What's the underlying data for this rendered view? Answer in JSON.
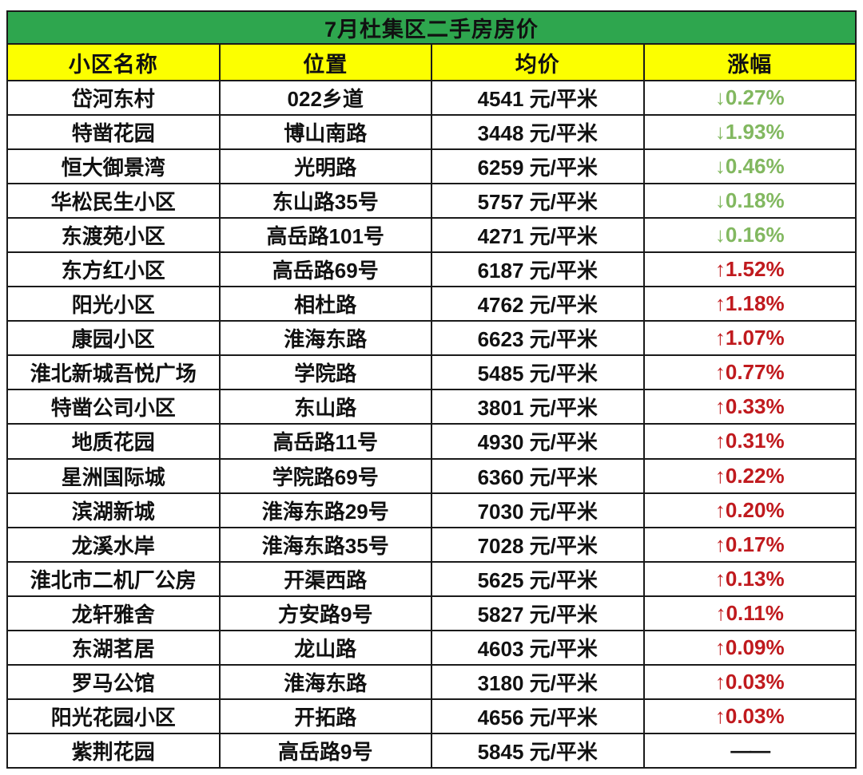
{
  "title": "7月杜集区二手房房价",
  "columns": [
    "小区名称",
    "位置",
    "均价",
    "涨幅"
  ],
  "colors": {
    "title_bg": "#2ea64e",
    "header_bg": "#fcff00",
    "up_red": "#c01a1e",
    "down_green": "#82b860",
    "border": "#1a1a1a",
    "text": "#111111"
  },
  "rows": [
    {
      "name": "岱河东村",
      "location": "022乡道",
      "price": "4541 元/平米",
      "change": "↓0.27%",
      "direction": "down"
    },
    {
      "name": "特凿花园",
      "location": "博山南路",
      "price": "3448 元/平米",
      "change": "↓1.93%",
      "direction": "down"
    },
    {
      "name": "恒大御景湾",
      "location": "光明路",
      "price": "6259 元/平米",
      "change": "↓0.46%",
      "direction": "down"
    },
    {
      "name": "华松民生小区",
      "location": "东山路35号",
      "price": "5757 元/平米",
      "change": "↓0.18%",
      "direction": "down"
    },
    {
      "name": "东渡苑小区",
      "location": "高岳路101号",
      "price": "4271 元/平米",
      "change": "↓0.16%",
      "direction": "down"
    },
    {
      "name": "东方红小区",
      "location": "高岳路69号",
      "price": "6187 元/平米",
      "change": "↑1.52%",
      "direction": "up"
    },
    {
      "name": "阳光小区",
      "location": "相杜路",
      "price": "4762 元/平米",
      "change": "↑1.18%",
      "direction": "up"
    },
    {
      "name": "康园小区",
      "location": "淮海东路",
      "price": "6623 元/平米",
      "change": "↑1.07%",
      "direction": "up"
    },
    {
      "name": "淮北新城吾悦广场",
      "location": "学院路",
      "price": "5485 元/平米",
      "change": "↑0.77%",
      "direction": "up"
    },
    {
      "name": "特凿公司小区",
      "location": "东山路",
      "price": "3801 元/平米",
      "change": "↑0.33%",
      "direction": "up"
    },
    {
      "name": "地质花园",
      "location": "高岳路11号",
      "price": "4930 元/平米",
      "change": "↑0.31%",
      "direction": "up"
    },
    {
      "name": "星洲国际城",
      "location": "学院路69号",
      "price": "6360 元/平米",
      "change": "↑0.22%",
      "direction": "up"
    },
    {
      "name": "滨湖新城",
      "location": "淮海东路29号",
      "price": "7030 元/平米",
      "change": "↑0.20%",
      "direction": "up"
    },
    {
      "name": "龙溪水岸",
      "location": "淮海东路35号",
      "price": "7028 元/平米",
      "change": "↑0.17%",
      "direction": "up"
    },
    {
      "name": "淮北市二机厂公房",
      "location": "开渠西路",
      "price": "5625 元/平米",
      "change": "↑0.13%",
      "direction": "up"
    },
    {
      "name": "龙轩雅舍",
      "location": "方安路9号",
      "price": "5827 元/平米",
      "change": "↑0.11%",
      "direction": "up"
    },
    {
      "name": "东湖茗居",
      "location": "龙山路",
      "price": "4603 元/平米",
      "change": "↑0.09%",
      "direction": "up"
    },
    {
      "name": "罗马公馆",
      "location": "淮海东路",
      "price": "3180 元/平米",
      "change": "↑0.03%",
      "direction": "up"
    },
    {
      "name": "阳光花园小区",
      "location": "开拓路",
      "price": "4656 元/平米",
      "change": "↑0.03%",
      "direction": "up"
    },
    {
      "name": "紫荆花园",
      "location": "高岳路9号",
      "price": "5845 元/平米",
      "change": "——",
      "direction": "none"
    }
  ],
  "chart_data": {
    "type": "table",
    "title": "7月杜集区二手房房价",
    "columns": [
      "小区名称",
      "位置",
      "均价",
      "涨幅"
    ],
    "rows": [
      [
        "岱河东村",
        "022乡道",
        "4541 元/平米",
        "↓0.27%"
      ],
      [
        "特凿花园",
        "博山南路",
        "3448 元/平米",
        "↓1.93%"
      ],
      [
        "恒大御景湾",
        "光明路",
        "6259 元/平米",
        "↓0.46%"
      ],
      [
        "华松民生小区",
        "东山路35号",
        "5757 元/平米",
        "↓0.18%"
      ],
      [
        "东渡苑小区",
        "高岳路101号",
        "4271 元/平米",
        "↓0.16%"
      ],
      [
        "东方红小区",
        "高岳路69号",
        "6187 元/平米",
        "↑1.52%"
      ],
      [
        "阳光小区",
        "相杜路",
        "4762 元/平米",
        "↑1.18%"
      ],
      [
        "康园小区",
        "淮海东路",
        "6623 元/平米",
        "↑1.07%"
      ],
      [
        "淮北新城吾悦广场",
        "学院路",
        "5485 元/平米",
        "↑0.77%"
      ],
      [
        "特凿公司小区",
        "东山路",
        "3801 元/平米",
        "↑0.33%"
      ],
      [
        "地质花园",
        "高岳路11号",
        "4930 元/平米",
        "↑0.31%"
      ],
      [
        "星洲国际城",
        "学院路69号",
        "6360 元/平米",
        "↑0.22%"
      ],
      [
        "滨湖新城",
        "淮海东路29号",
        "7030 元/平米",
        "↑0.20%"
      ],
      [
        "龙溪水岸",
        "淮海东路35号",
        "7028 元/平米",
        "↑0.17%"
      ],
      [
        "淮北市二机厂公房",
        "开渠西路",
        "5625 元/平米",
        "↑0.13%"
      ],
      [
        "龙轩雅舍",
        "方安路9号",
        "5827 元/平米",
        "↑0.11%"
      ],
      [
        "东湖茗居",
        "龙山路",
        "4603 元/平米",
        "↑0.09%"
      ],
      [
        "罗马公馆",
        "淮海东路",
        "3180 元/平米",
        "↑0.03%"
      ],
      [
        "阳光花园小区",
        "开拓路",
        "4656 元/平米",
        "↑0.03%"
      ],
      [
        "紫荆花园",
        "高岳路9号",
        "5845 元/平米",
        "——"
      ]
    ],
    "prices_yuan_per_sqm": [
      4541,
      3448,
      6259,
      5757,
      4271,
      6187,
      4762,
      6623,
      5485,
      3801,
      4930,
      6360,
      7030,
      7028,
      5625,
      5827,
      4603,
      3180,
      4656,
      5845
    ],
    "change_percent": [
      -0.27,
      -1.93,
      -0.46,
      -0.18,
      -0.16,
      1.52,
      1.18,
      1.07,
      0.77,
      0.33,
      0.31,
      0.22,
      0.2,
      0.17,
      0.13,
      0.11,
      0.09,
      0.03,
      0.03,
      null
    ]
  }
}
